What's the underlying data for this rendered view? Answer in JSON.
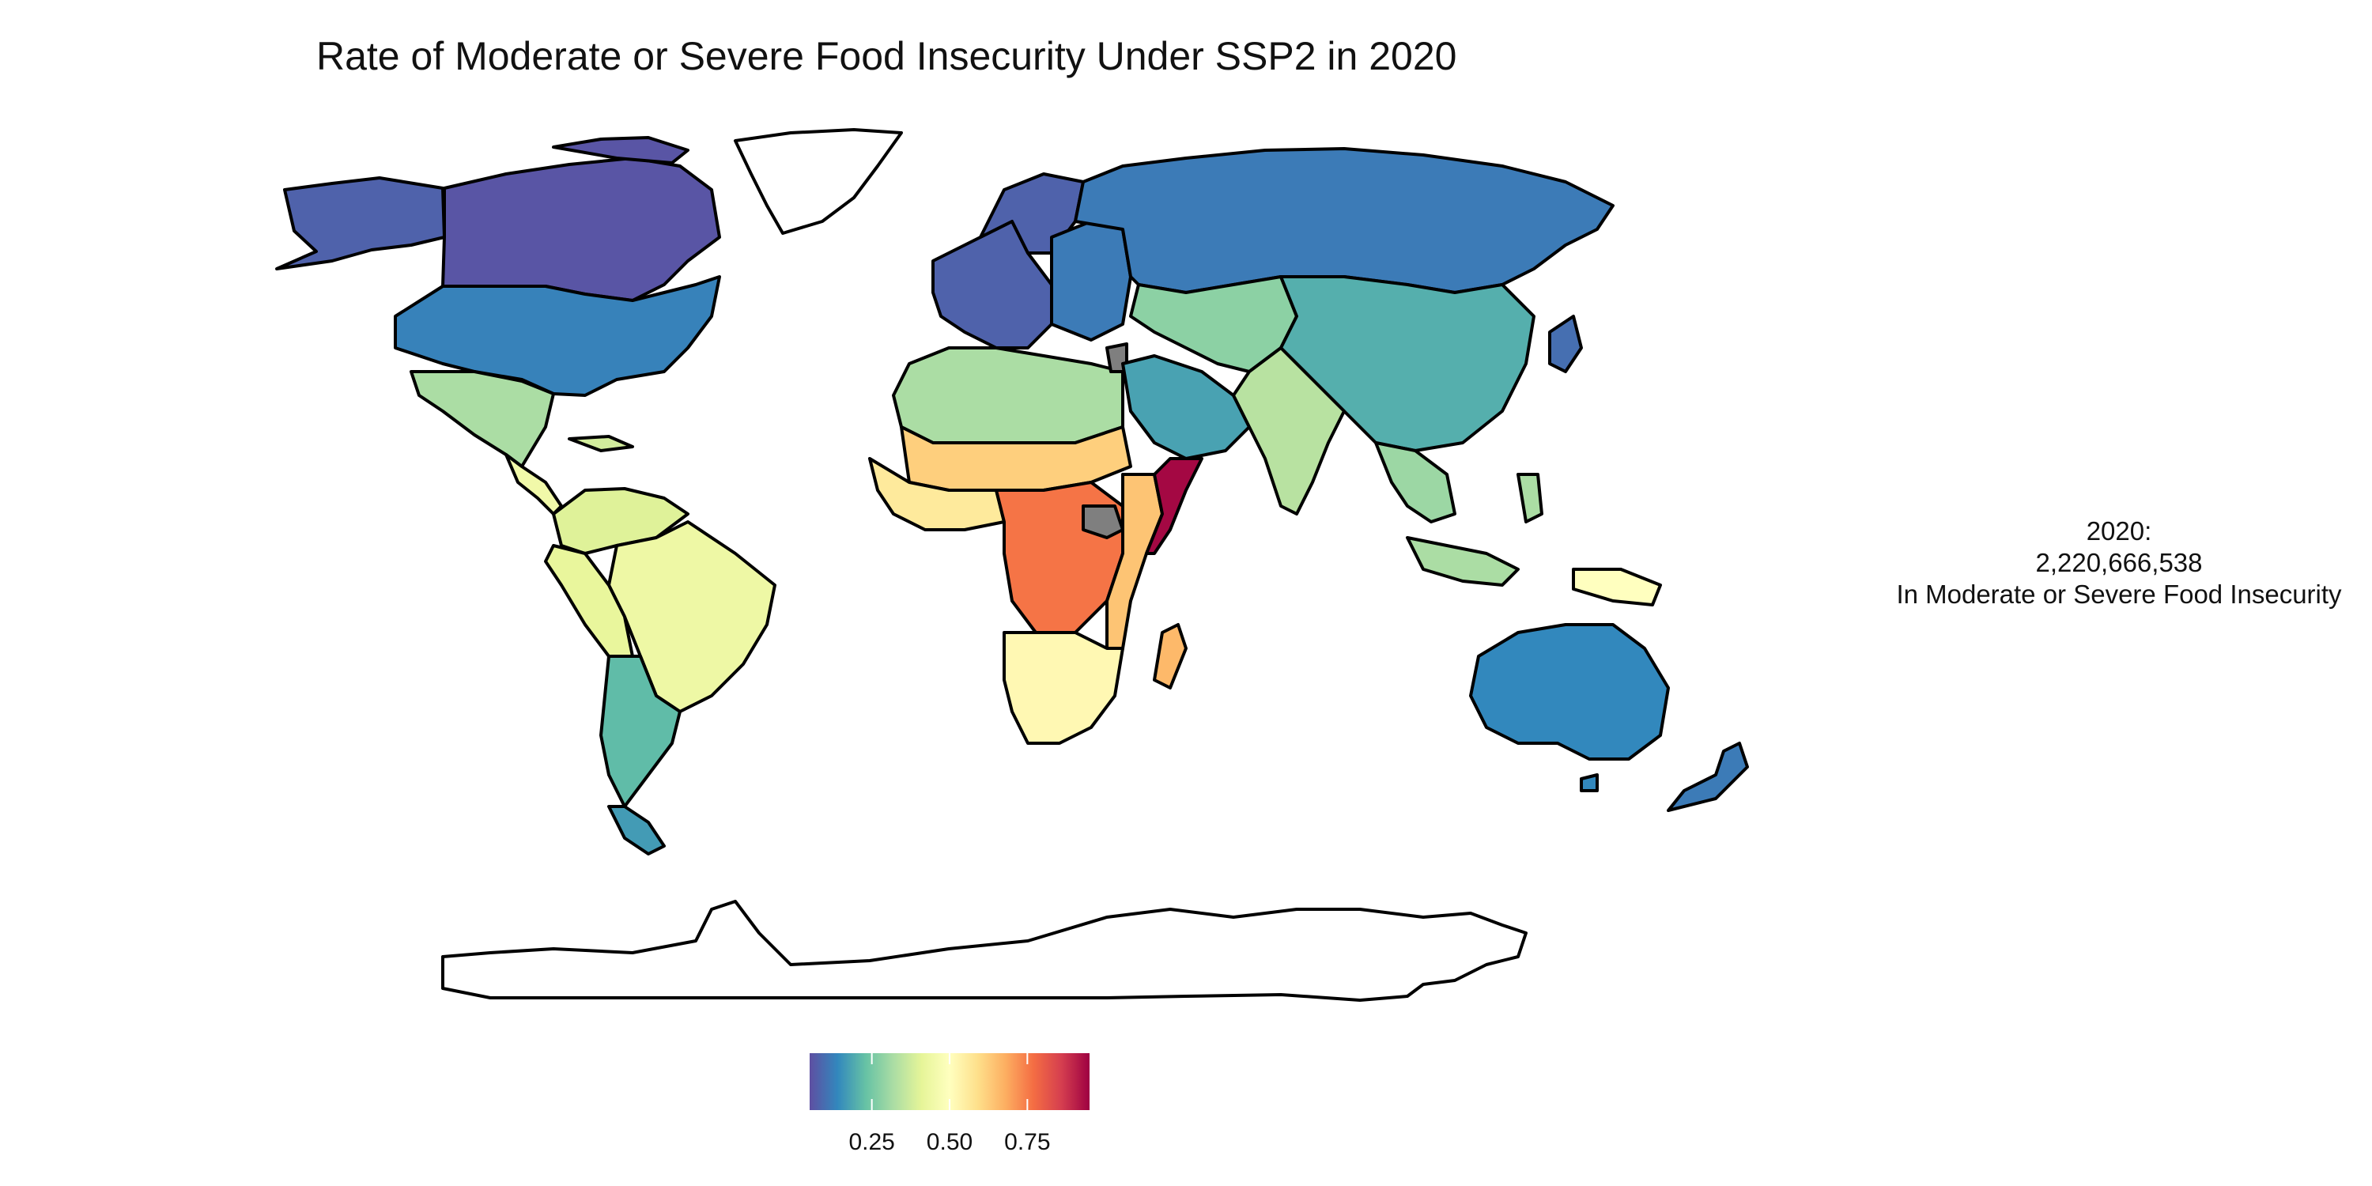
{
  "title": "Rate of Moderate or Severe Food Insecurity Under SSP2 in 2020",
  "annotation": {
    "line1": "2020:",
    "line2": "2,220,666,538",
    "line3": "In Moderate or Severe Food Insecurity"
  },
  "legend": {
    "tick_labels": [
      "0.25",
      "0.50",
      "0.75"
    ],
    "tick_values": [
      0.25,
      0.5,
      0.75
    ],
    "range": [
      0.05,
      0.95
    ],
    "colors": [
      "#5e4fa2",
      "#3288bd",
      "#66c2a5",
      "#abdda4",
      "#e6f598",
      "#ffffbf",
      "#fee08b",
      "#fdae61",
      "#f46d43",
      "#d53e4f",
      "#9e0142"
    ]
  },
  "colors": {
    "no_data": "#7f7f7f",
    "antarctica": "#ffffff",
    "greenland": "#ffffff",
    "border": "#000000"
  },
  "regions": [
    {
      "name": "canada",
      "rate": 0.06
    },
    {
      "name": "alaska",
      "rate": 0.08
    },
    {
      "name": "usa",
      "rate": 0.13
    },
    {
      "name": "mexico",
      "rate": 0.32
    },
    {
      "name": "central-america",
      "rate": 0.45
    },
    {
      "name": "caribbean",
      "rate": 0.38
    },
    {
      "name": "colombia-venezuela",
      "rate": 0.4
    },
    {
      "name": "brazil",
      "rate": 0.44
    },
    {
      "name": "andes",
      "rate": 0.42
    },
    {
      "name": "argentina-chile",
      "rate": 0.22
    },
    {
      "name": "patagonia",
      "rate": 0.17
    },
    {
      "name": "europe-west",
      "rate": 0.08
    },
    {
      "name": "europe-east",
      "rate": 0.12
    },
    {
      "name": "russia",
      "rate": 0.12
    },
    {
      "name": "north-africa",
      "rate": 0.32
    },
    {
      "name": "sahel",
      "rate": 0.62
    },
    {
      "name": "west-africa",
      "rate": 0.56
    },
    {
      "name": "central-africa",
      "rate": 0.76
    },
    {
      "name": "east-africa",
      "rate": 0.64
    },
    {
      "name": "somalia",
      "rate": 0.94
    },
    {
      "name": "southern-africa",
      "rate": 0.52
    },
    {
      "name": "madagascar",
      "rate": 0.66
    },
    {
      "name": "arabia",
      "rate": 0.18
    },
    {
      "name": "central-asia",
      "rate": 0.28
    },
    {
      "name": "china",
      "rate": 0.2
    },
    {
      "name": "south-asia",
      "rate": 0.34
    },
    {
      "name": "southeast-asia",
      "rate": 0.3
    },
    {
      "name": "japan",
      "rate": 0.1
    },
    {
      "name": "indonesia",
      "rate": 0.32
    },
    {
      "name": "papua",
      "rate": 0.5
    },
    {
      "name": "australia",
      "rate": 0.14
    },
    {
      "name": "new-zealand",
      "rate": 0.12
    }
  ]
}
